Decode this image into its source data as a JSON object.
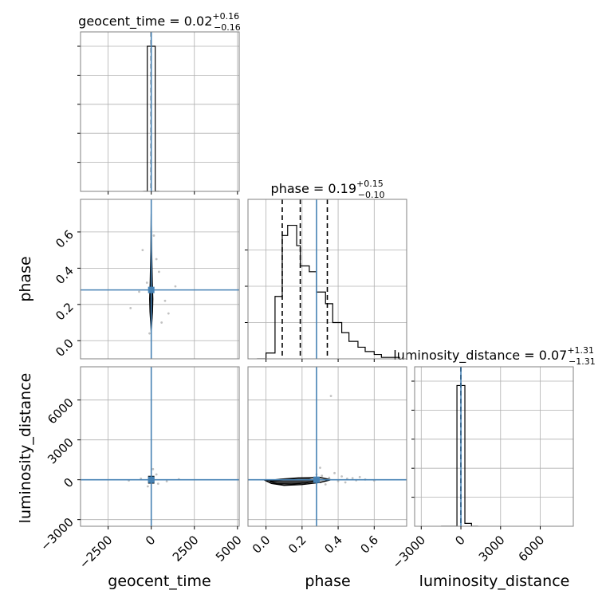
{
  "chart_data": {
    "type": "corner",
    "parameters": [
      "geocent_time",
      "phase",
      "luminosity_distance"
    ],
    "truth_color": "#4682b4",
    "grid": true,
    "titles": {
      "geocent_time": {
        "name": "geocent_time",
        "value": "0.02",
        "plus": "+0.16",
        "minus": "−0.16"
      },
      "phase": {
        "name": "phase",
        "value": "0.19",
        "plus": "+0.15",
        "minus": "−0.10"
      },
      "luminosity_distance": {
        "name": "luminosity_distance",
        "value": "0.07",
        "plus": "+1.31",
        "minus": "−1.31"
      }
    },
    "axis_labels": {
      "geocent_time": "geocent_time",
      "phase": "phase",
      "luminosity_distance": "luminosity_distance"
    },
    "ranges": {
      "geocent_time": [
        -4100,
        5100
      ],
      "phase": [
        -0.1,
        0.78
      ],
      "luminosity_distance": [
        -3500,
        8500
      ]
    },
    "ticks": {
      "geocent_time": {
        "values": [
          -2500,
          0,
          2500,
          5000
        ],
        "labels": [
          "−2500",
          "0",
          "2500",
          "5000"
        ]
      },
      "phase": {
        "values": [
          0.0,
          0.2,
          0.4,
          0.6
        ],
        "labels": [
          "0.0",
          "0.2",
          "0.4",
          "0.6"
        ]
      },
      "luminosity_distance": {
        "values": [
          -3000,
          0,
          3000,
          6000
        ],
        "labels": [
          "−3000",
          "0",
          "3000",
          "6000"
        ]
      }
    },
    "truths": {
      "geocent_time": 0.0,
      "phase": 0.28,
      "luminosity_distance": 0.0
    },
    "histograms": {
      "geocent_time": {
        "edges": [
          -460,
          -230,
          0,
          230,
          460
        ],
        "heights": [
          0.0,
          1.0,
          1.0,
          0.0
        ],
        "quantiles": [
          -0.14,
          0.02,
          0.18
        ],
        "ymax": 1.0,
        "yticks": [
          0.2,
          0.4,
          0.6,
          0.8,
          1.0
        ]
      },
      "phase": {
        "edges": [
          -0.05,
          0.0,
          0.05,
          0.09,
          0.12,
          0.17,
          0.19,
          0.24,
          0.28,
          0.33,
          0.37,
          0.42,
          0.46,
          0.51,
          0.55,
          0.6,
          0.64,
          0.69,
          0.74
        ],
        "heights": [
          0.0,
          0.04,
          0.43,
          0.85,
          0.92,
          0.78,
          0.64,
          0.6,
          0.46,
          0.38,
          0.25,
          0.18,
          0.12,
          0.08,
          0.05,
          0.03,
          0.01,
          0.01
        ],
        "quantiles": [
          0.09,
          0.19,
          0.34
        ],
        "ymax": 1.0,
        "yticks": [
          0.25,
          0.5,
          0.75
        ]
      },
      "luminosity_distance": {
        "edges": [
          -1500,
          -300,
          0,
          300,
          800,
          1300
        ],
        "heights": [
          0.0,
          0.97,
          0.97,
          0.02,
          0.0
        ],
        "quantiles": [
          -1.24,
          0.07,
          1.38
        ],
        "ymax": 1.0,
        "yticks": [
          0.2,
          0.4,
          0.6,
          0.8,
          1.0
        ]
      }
    },
    "pairs": [
      {
        "x": "geocent_time",
        "y": "phase",
        "contours": [
          [
            [
              0,
              0.05
            ],
            [
              -30,
              0.1
            ],
            [
              -70,
              0.16
            ],
            [
              -90,
              0.23
            ],
            [
              -60,
              0.32
            ],
            [
              -20,
              0.5
            ],
            [
              0,
              0.7
            ],
            [
              20,
              0.5
            ],
            [
              60,
              0.32
            ],
            [
              90,
              0.23
            ],
            [
              70,
              0.16
            ],
            [
              30,
              0.1
            ],
            [
              0,
              0.05
            ]
          ],
          [
            [
              0,
              0.08
            ],
            [
              -40,
              0.13
            ],
            [
              -60,
              0.2
            ],
            [
              -30,
              0.3
            ],
            [
              0,
              0.4
            ],
            [
              30,
              0.3
            ],
            [
              60,
              0.2
            ],
            [
              40,
              0.13
            ],
            [
              0,
              0.08
            ]
          ]
        ],
        "points": [
          [
            -1200,
            0.18
          ],
          [
            800,
            0.22
          ],
          [
            1400,
            0.3
          ],
          [
            -500,
            0.5
          ],
          [
            300,
            0.45
          ],
          [
            -250,
            0.32
          ],
          [
            450,
            0.38
          ],
          [
            150,
            0.58
          ],
          [
            -100,
            0.04
          ],
          [
            600,
            0.1
          ],
          [
            -700,
            0.27
          ],
          [
            1000,
            0.15
          ]
        ]
      },
      {
        "x": "geocent_time",
        "y": "luminosity_distance",
        "contours": [
          [
            [
              -150,
              -250
            ],
            [
              -150,
              250
            ],
            [
              150,
              250
            ],
            [
              150,
              -250
            ],
            [
              -150,
              -250
            ]
          ],
          [
            [
              -90,
              -150
            ],
            [
              -90,
              150
            ],
            [
              90,
              150
            ],
            [
              90,
              -150
            ],
            [
              -90,
              -150
            ]
          ]
        ],
        "points": [
          [
            -600,
            80
          ],
          [
            900,
            -120
          ],
          [
            300,
            400
          ],
          [
            -200,
            -500
          ],
          [
            1600,
            40
          ],
          [
            -1300,
            -60
          ],
          [
            100,
            800
          ],
          [
            400,
            -300
          ]
        ]
      },
      {
        "x": "phase",
        "y": "luminosity_distance",
        "contours": [
          [
            [
              0.0,
              -80
            ],
            [
              0.03,
              -280
            ],
            [
              0.1,
              -420
            ],
            [
              0.2,
              -360
            ],
            [
              0.3,
              -200
            ],
            [
              0.36,
              0
            ],
            [
              0.3,
              180
            ],
            [
              0.18,
              140
            ],
            [
              0.08,
              40
            ],
            [
              0.0,
              -80
            ]
          ],
          [
            [
              0.02,
              -120
            ],
            [
              0.06,
              -300
            ],
            [
              0.14,
              -330
            ],
            [
              0.22,
              -240
            ],
            [
              0.28,
              -100
            ],
            [
              0.24,
              50
            ],
            [
              0.12,
              30
            ],
            [
              0.02,
              -120
            ]
          ]
        ],
        "points": [
          [
            0.31,
            300
          ],
          [
            0.35,
            150
          ],
          [
            0.4,
            -100
          ],
          [
            0.45,
            80
          ],
          [
            0.5,
            -40
          ],
          [
            0.38,
            500
          ],
          [
            0.42,
            250
          ],
          [
            0.28,
            400
          ],
          [
            0.55,
            20
          ],
          [
            0.33,
            -350
          ],
          [
            0.48,
            120
          ],
          [
            0.36,
            6300
          ],
          [
            0.6,
            -60
          ],
          [
            0.3,
            900
          ],
          [
            0.44,
            -200
          ],
          [
            0.52,
            200
          ]
        ]
      }
    ]
  }
}
